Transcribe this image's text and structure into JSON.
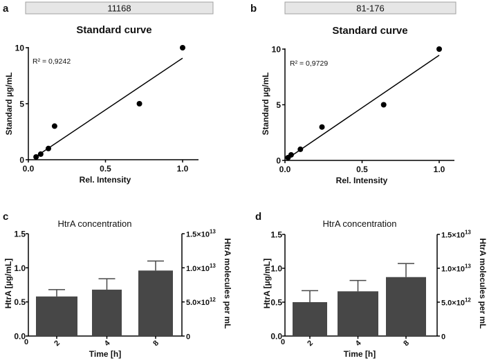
{
  "chart_data": [
    {
      "panel": "a",
      "type": "scatter",
      "header": "11168",
      "title": "Standard curve",
      "xlabel": "Rel. Intensity",
      "ylabel": "Standard µg/mL",
      "xlim": [
        0,
        1.1
      ],
      "ylim": [
        0,
        10
      ],
      "xticks": [
        "0.0",
        "0.5",
        "1.0"
      ],
      "yticks": [
        "0",
        "5",
        "10"
      ],
      "annotation": "R² = 0,9242",
      "points": [
        [
          0.05,
          0.25
        ],
        [
          0.08,
          0.5
        ],
        [
          0.13,
          1
        ],
        [
          0.17,
          3
        ],
        [
          0.72,
          5
        ],
        [
          1.0,
          10
        ]
      ],
      "fit_line": [
        [
          0.04,
          0.2
        ],
        [
          1.0,
          9.07
        ]
      ],
      "grid": false,
      "color": "#000000"
    },
    {
      "panel": "b",
      "type": "scatter",
      "header": "81-176",
      "title": "Standard curve",
      "xlabel": "Rel. Intensity",
      "ylabel": "Standard µg/mL",
      "xlim": [
        0,
        1.1
      ],
      "ylim": [
        0,
        10
      ],
      "xticks": [
        "0.0",
        "0.5",
        "1.0"
      ],
      "yticks": [
        "0",
        "5",
        "10"
      ],
      "annotation": "R² = 0,9729",
      "points": [
        [
          0.02,
          0.25
        ],
        [
          0.04,
          0.5
        ],
        [
          0.1,
          1
        ],
        [
          0.24,
          3
        ],
        [
          0.64,
          5
        ],
        [
          1.0,
          10
        ]
      ],
      "fit_line": [
        [
          0.02,
          0.2
        ],
        [
          1.0,
          9.45
        ]
      ],
      "grid": false,
      "color": "#000000"
    },
    {
      "panel": "c",
      "type": "bar",
      "title": "HtrA concentration",
      "xlabel": "Time [h]",
      "ylabel": "HtrA [µg/mL]",
      "ylabel_right": "HtrA molecules per mL",
      "categories": [
        "2",
        "4",
        "8"
      ],
      "values": [
        0.58,
        0.68,
        0.96
      ],
      "error_upper": [
        0.68,
        0.84,
        1.1
      ],
      "ylim": [
        0,
        1.5
      ],
      "yticks": [
        "0.0",
        "0.5",
        "1.0",
        "1.5"
      ],
      "yticks_right": [
        {
          "m": "0",
          "e": ""
        },
        {
          "m": "5.0×10",
          "e": "12"
        },
        {
          "m": "1.0×10",
          "e": "13"
        },
        {
          "m": "1.5×10",
          "e": "13"
        }
      ],
      "x_origin_label": "0",
      "grid": false,
      "color": "#474747"
    },
    {
      "panel": "d",
      "type": "bar",
      "title": "HtrA concentration",
      "xlabel": "Time [h]",
      "ylabel": "HtrA [µg/mL]",
      "ylabel_right": "HtrA molecules per mL",
      "categories": [
        "2",
        "4",
        "8"
      ],
      "values": [
        0.5,
        0.66,
        0.87
      ],
      "error_upper": [
        0.67,
        0.82,
        1.07
      ],
      "ylim": [
        0,
        1.5
      ],
      "yticks": [
        "0.0",
        "0.5",
        "1.0",
        "1.5"
      ],
      "yticks_right": [
        {
          "m": "0",
          "e": ""
        },
        {
          "m": "5.0×10",
          "e": "12"
        },
        {
          "m": "1.0×10",
          "e": "13"
        },
        {
          "m": "1.5×10",
          "e": "13"
        }
      ],
      "x_origin_label": "0",
      "grid": false,
      "color": "#474747"
    }
  ]
}
